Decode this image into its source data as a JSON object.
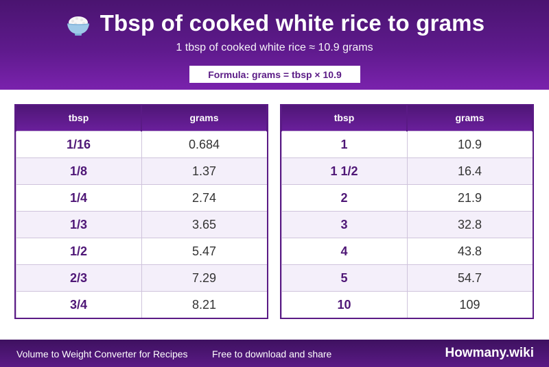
{
  "header": {
    "title": "Tbsp of cooked white rice to grams",
    "subtitle": "1 tbsp of cooked white rice ≈ 10.9 grams",
    "formula": "Formula: grams = tbsp × 10.9",
    "icon": "rice-bowl-icon"
  },
  "tables": {
    "left": {
      "headers": [
        "tbsp",
        "grams"
      ],
      "rows": [
        [
          "1/16",
          "0.684"
        ],
        [
          "1/8",
          "1.37"
        ],
        [
          "1/4",
          "2.74"
        ],
        [
          "1/3",
          "3.65"
        ],
        [
          "1/2",
          "5.47"
        ],
        [
          "2/3",
          "7.29"
        ],
        [
          "3/4",
          "8.21"
        ]
      ]
    },
    "right": {
      "headers": [
        "tbsp",
        "grams"
      ],
      "rows": [
        [
          "1",
          "10.9"
        ],
        [
          "1 1/2",
          "16.4"
        ],
        [
          "2",
          "21.9"
        ],
        [
          "3",
          "32.8"
        ],
        [
          "4",
          "43.8"
        ],
        [
          "5",
          "54.7"
        ],
        [
          "10",
          "109"
        ]
      ]
    }
  },
  "footer": {
    "left_text": "Volume to Weight Converter for Recipes",
    "middle_text": "Free to download and share",
    "brand": "Howmany.wiki"
  },
  "colors": {
    "header_purple": "#5e1a8c",
    "accent_text": "#4e1676",
    "alt_row": "#f4effa"
  }
}
